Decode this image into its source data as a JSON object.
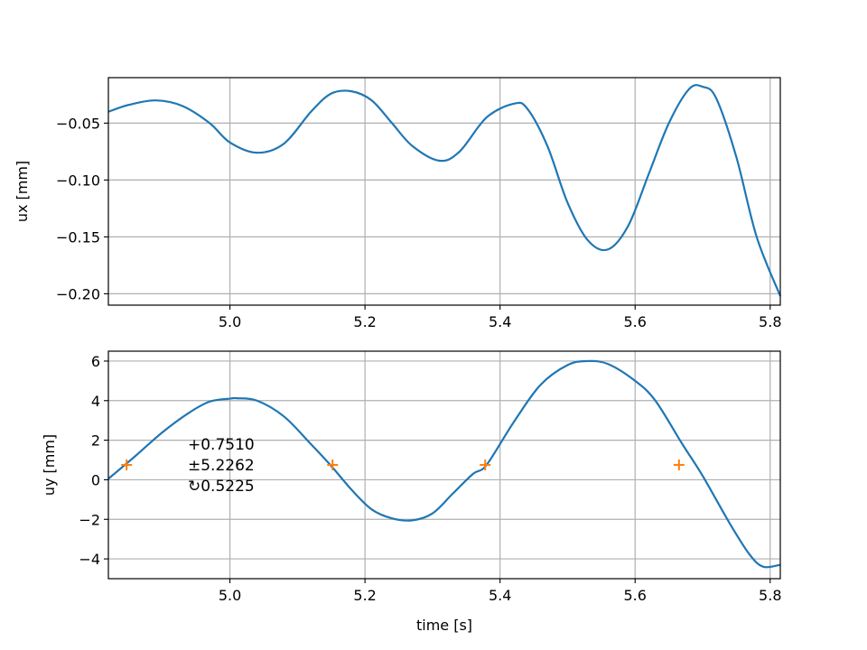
{
  "colors": {
    "series": "#1f77b4",
    "markers": "#ff7f0e",
    "grid": "#b0b0b0",
    "axes": "#000000",
    "background": "#ffffff"
  },
  "chart_data": [
    {
      "type": "line",
      "title": "",
      "xlabel": "",
      "ylabel": "ux [mm]",
      "xlim": [
        4.82,
        5.815
      ],
      "ylim": [
        -0.21,
        -0.01
      ],
      "grid": true,
      "xticks": [
        5.0,
        5.2,
        5.4,
        5.6,
        5.8
      ],
      "xtick_labels": [
        "5.0",
        "5.2",
        "5.4",
        "5.6",
        "5.8"
      ],
      "yticks": [
        -0.05,
        -0.1,
        -0.15,
        -0.2
      ],
      "ytick_labels": [
        "−0.05",
        "−0.10",
        "−0.15",
        "−0.20"
      ],
      "series": [
        {
          "x": [
            4.82,
            4.85,
            4.89,
            4.93,
            4.97,
            5.0,
            5.04,
            5.08,
            5.12,
            5.15,
            5.18,
            5.21,
            5.24,
            5.27,
            5.31,
            5.34,
            5.38,
            5.42,
            5.44,
            5.47,
            5.5,
            5.53,
            5.56,
            5.59,
            5.62,
            5.65,
            5.68,
            5.7,
            5.72,
            5.75,
            5.78,
            5.815
          ],
          "y": [
            -0.04,
            -0.034,
            -0.03,
            -0.035,
            -0.05,
            -0.067,
            -0.076,
            -0.068,
            -0.04,
            -0.024,
            -0.022,
            -0.03,
            -0.05,
            -0.07,
            -0.083,
            -0.075,
            -0.045,
            -0.033,
            -0.037,
            -0.07,
            -0.12,
            -0.153,
            -0.161,
            -0.14,
            -0.095,
            -0.05,
            -0.02,
            -0.018,
            -0.028,
            -0.08,
            -0.15,
            -0.202
          ]
        }
      ]
    },
    {
      "type": "line",
      "title": "",
      "xlabel": "time [s]",
      "ylabel": "uy [mm]",
      "xlim": [
        4.82,
        5.815
      ],
      "ylim": [
        -5.0,
        6.5
      ],
      "grid": true,
      "xticks": [
        5.0,
        5.2,
        5.4,
        5.6,
        5.8
      ],
      "xtick_labels": [
        "5.0",
        "5.2",
        "5.4",
        "5.6",
        "5.8"
      ],
      "yticks": [
        6,
        4,
        2,
        0,
        -2,
        -4
      ],
      "ytick_labels": [
        "6",
        "4",
        "2",
        "0",
        "−2",
        "−4"
      ],
      "series": [
        {
          "x": [
            4.82,
            4.86,
            4.9,
            4.94,
            4.97,
            5.0,
            5.01,
            5.04,
            5.08,
            5.12,
            5.15,
            5.18,
            5.21,
            5.24,
            5.27,
            5.3,
            5.33,
            5.36,
            5.38,
            5.42,
            5.46,
            5.5,
            5.53,
            5.56,
            5.6,
            5.63,
            5.67,
            5.7,
            5.74,
            5.77,
            5.79,
            5.815
          ],
          "y": [
            0.05,
            1.2,
            2.4,
            3.4,
            3.95,
            4.1,
            4.12,
            4.0,
            3.2,
            1.8,
            0.7,
            -0.5,
            -1.5,
            -1.95,
            -2.05,
            -1.7,
            -0.7,
            0.3,
            0.75,
            2.9,
            4.8,
            5.8,
            6.0,
            5.85,
            5.0,
            4.0,
            1.8,
            0.2,
            -2.2,
            -3.8,
            -4.4,
            -4.3
          ]
        }
      ],
      "markers": {
        "symbol": "+",
        "x": [
          4.847,
          5.152,
          5.378,
          5.665
        ],
        "y": [
          0.751,
          0.751,
          0.751,
          0.751
        ]
      },
      "annotations": [
        "+0.7510",
        "±5.2262",
        "↻0.5225"
      ]
    }
  ]
}
